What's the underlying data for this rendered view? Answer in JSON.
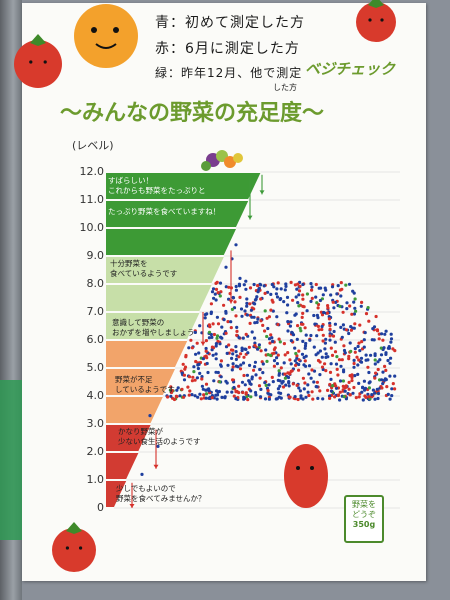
{
  "poster": {
    "notes": {
      "blue": "青：初めて測定した方",
      "red": "赤：6月に測定した方",
      "green": "緑：昨年12月、他で測定",
      "green_cont": "した方"
    },
    "logo": "ベジチェック",
    "title": "〜みんなの野菜の充足度〜",
    "unit_label": "(レベル)",
    "levels": [
      "12.0",
      "11.0",
      "10.0",
      "9.0",
      "8.0",
      "7.0",
      "6.0",
      "5.0",
      "4.0",
      "3.0",
      "2.0",
      "1.0",
      "0"
    ],
    "bands": [
      {
        "lines": [
          "すばらしい！",
          "これからも野菜をたっぷりと"
        ],
        "light": true
      },
      {
        "lines": [
          "たっぷり野菜を食べていますね！"
        ],
        "light": true
      },
      {
        "lines": [
          "十分野菜を",
          "食べているようです"
        ],
        "light": false
      },
      {
        "lines": [
          "意識して野菜の",
          "おかずを増やしましょう"
        ],
        "light": false
      },
      {
        "lines": [
          "野菜が不足",
          "しているようです"
        ],
        "light": false
      },
      {
        "lines": [
          "かなり野菜が",
          "少ない食生活のようです"
        ],
        "light": false
      },
      {
        "lines": [
          "少しでもよいので",
          "野菜を食べてみませんか？"
        ],
        "light": false
      }
    ],
    "colors": {
      "green_dark": "#3d9a35",
      "green_light": "#c7dfa8",
      "orange": "#f2a46a",
      "red": "#d23b32",
      "blue_dot": "#1f3f9e",
      "red_dot": "#d6312b",
      "green_dot": "#3e9b3a",
      "tomato": "#d83a2c"
    },
    "stamp": {
      "l1": "野菜を",
      "l2": "どうぞ",
      "l3": "350g"
    }
  }
}
